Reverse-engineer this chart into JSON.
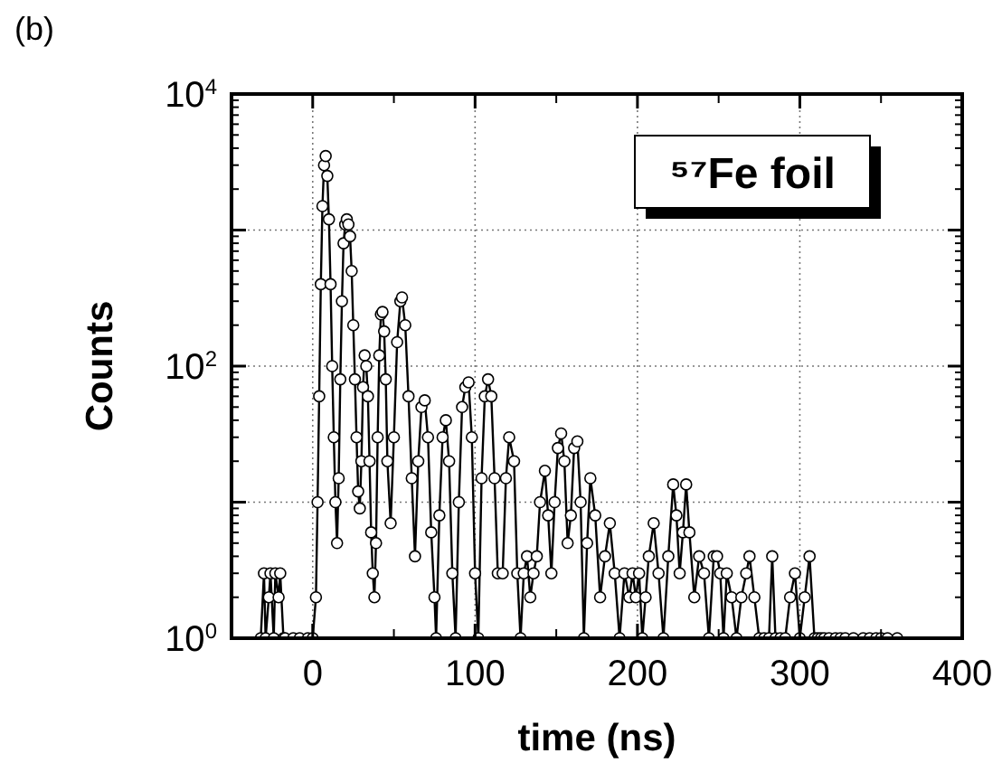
{
  "chart_data": {
    "type": "line",
    "title": "(b)",
    "xlabel": "time (ns)",
    "ylabel": "Counts",
    "annotations": [
      "⁵⁷Fe foil"
    ],
    "xlim": [
      -50,
      400
    ],
    "xticks": [
      0,
      100,
      200,
      300,
      400
    ],
    "ylim": [
      1,
      10000
    ],
    "log": "y",
    "yticks": [
      {
        "value": 1,
        "label": "10$^{0}$"
      },
      {
        "value": 10,
        "label": null
      },
      {
        "value": 100,
        "label": "10$^{2}$"
      },
      {
        "value": 1000,
        "label": null
      },
      {
        "value": 10000,
        "label": "10$^{4}$"
      }
    ],
    "grid": true,
    "marker": "circle",
    "line_style": "solid",
    "series": [
      {
        "color": "#000000",
        "x": [
          -32,
          -30,
          -29,
          -27,
          -26,
          -24,
          -23,
          -21,
          -20,
          -18,
          -17,
          -12,
          -8,
          -3,
          0,
          2,
          3,
          4,
          5,
          6,
          7,
          8,
          9,
          10,
          11,
          12,
          13,
          14,
          15,
          16,
          17,
          18,
          19,
          20,
          21,
          22,
          23,
          24,
          25,
          26,
          27,
          28,
          29,
          30,
          31,
          32,
          33,
          34,
          35,
          36,
          37,
          38,
          39,
          40,
          41,
          42,
          43,
          44,
          45,
          46,
          48,
          50,
          52,
          54,
          55,
          57,
          59,
          61,
          63,
          65,
          67,
          69,
          71,
          73,
          75,
          76,
          78,
          80,
          82,
          84,
          86,
          88,
          90,
          92,
          94,
          96,
          98,
          100,
          102,
          104,
          106,
          108,
          110,
          112,
          114,
          117,
          119,
          121,
          124,
          126,
          128,
          130,
          132,
          134,
          136,
          138,
          140,
          143,
          145,
          147,
          149,
          151,
          153,
          155,
          157,
          159,
          161,
          163,
          165,
          167,
          169,
          171,
          174,
          177,
          180,
          183,
          186,
          189,
          192,
          195,
          197,
          199,
          201,
          203,
          205,
          207,
          210,
          213,
          216,
          219,
          222,
          224,
          226,
          228,
          230,
          232,
          235,
          238,
          241,
          244,
          247,
          249,
          251,
          253,
          255,
          258,
          261,
          264,
          267,
          269,
          272,
          275,
          278,
          281,
          283,
          285,
          288,
          291,
          294,
          297,
          300,
          303,
          306,
          309,
          311,
          313,
          315,
          318,
          322,
          325,
          328,
          333,
          339,
          343,
          347,
          350,
          354,
          360
        ],
        "values": [
          1,
          3,
          1,
          2,
          3,
          1,
          3,
          2,
          3,
          1,
          1,
          1,
          1,
          1,
          1,
          2,
          10,
          60,
          400,
          1500,
          3000,
          3500,
          2500,
          1200,
          400,
          100,
          30,
          10,
          5,
          15,
          80,
          300,
          800,
          1100,
          1200,
          1100,
          900,
          500,
          200,
          80,
          30,
          12,
          9,
          20,
          70,
          120,
          100,
          60,
          20,
          6,
          3,
          2,
          5,
          30,
          120,
          240,
          250,
          180,
          80,
          20,
          7,
          30,
          150,
          300,
          320,
          200,
          60,
          15,
          4,
          20,
          50,
          56,
          30,
          6,
          2,
          1,
          8,
          30,
          40,
          20,
          3,
          1,
          10,
          50,
          70,
          76,
          30,
          3,
          1,
          15,
          60,
          80,
          60,
          15,
          3,
          3,
          15,
          30,
          20,
          3,
          1,
          3,
          4,
          2,
          3,
          4,
          10,
          17,
          8,
          3,
          10,
          25,
          32,
          20,
          5,
          8,
          25,
          28,
          10,
          1,
          5,
          15,
          8,
          2,
          4,
          7,
          3,
          1,
          3,
          2,
          3,
          2,
          3,
          1,
          2,
          4,
          7,
          3,
          1,
          4,
          13.5,
          8,
          3,
          6,
          13.5,
          6,
          2,
          4,
          3,
          1,
          4,
          4,
          3,
          1,
          3,
          2,
          1,
          2,
          3,
          4,
          2,
          1,
          1,
          1,
          4,
          1,
          1,
          1,
          2,
          3,
          1,
          2,
          4,
          1,
          1,
          1,
          1,
          1,
          1,
          1,
          1,
          1,
          1,
          1,
          1,
          1,
          1,
          1
        ]
      }
    ]
  }
}
